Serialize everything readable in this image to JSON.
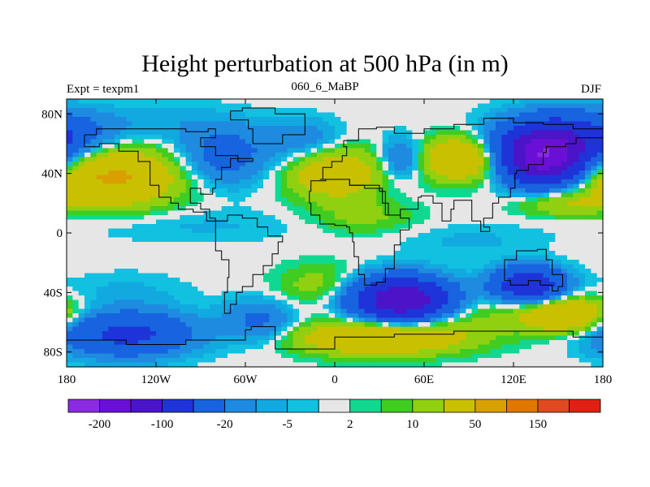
{
  "chart_data": {
    "type": "heatmap",
    "title": "Height perturbation at 500 hPa (in m)",
    "subtitle_left": "Expt = texpm1",
    "subtitle_center": "060_6_MaBP",
    "subtitle_right": "DJF",
    "x_axis": {
      "range": [
        -180,
        180
      ],
      "ticks": [
        -180,
        -120,
        -60,
        0,
        60,
        120,
        180
      ],
      "tick_labels": [
        "180",
        "120W",
        "60W",
        "0",
        "60E",
        "120E",
        "180"
      ]
    },
    "y_axis": {
      "range": [
        -90,
        90
      ],
      "ticks": [
        80,
        40,
        0,
        -40,
        -80
      ],
      "tick_labels": [
        "80N",
        "40N",
        "0",
        "40S",
        "80S"
      ]
    },
    "colorbar": {
      "colors": [
        "#8a2be2",
        "#6a0fd6",
        "#4b14c8",
        "#1e34d8",
        "#1763e0",
        "#1e8be0",
        "#12a8e0",
        "#12c0e0",
        "#e6e6e6",
        "#10d890",
        "#40cc20",
        "#90d010",
        "#c8c000",
        "#d8a000",
        "#e07800",
        "#e04a20",
        "#e02010"
      ],
      "labels": [
        "-200",
        "-100",
        "-20",
        "-5",
        "2",
        "10",
        "50",
        "150"
      ]
    },
    "field_blobs": [
      {
        "lon": -150,
        "lat": 38,
        "amp": 55,
        "sx": 32,
        "sy": 14
      },
      {
        "lon": -75,
        "lat": 52,
        "amp": -30,
        "sx": 22,
        "sy": 14
      },
      {
        "lon": -130,
        "lat": 73,
        "amp": -8,
        "sx": 40,
        "sy": 10
      },
      {
        "lon": -20,
        "lat": 62,
        "amp": -18,
        "sx": 18,
        "sy": 10
      },
      {
        "lon": 0,
        "lat": 40,
        "amp": 40,
        "sx": 22,
        "sy": 12
      },
      {
        "lon": 45,
        "lat": 50,
        "amp": -25,
        "sx": 10,
        "sy": 10
      },
      {
        "lon": 85,
        "lat": 50,
        "amp": 50,
        "sx": 18,
        "sy": 10
      },
      {
        "lon": 140,
        "lat": 50,
        "amp": -160,
        "sx": 18,
        "sy": 12
      },
      {
        "lon": 155,
        "lat": 62,
        "amp": -80,
        "sx": 30,
        "sy": 12
      },
      {
        "lon": 150,
        "lat": 20,
        "amp": 20,
        "sx": 20,
        "sy": 6
      },
      {
        "lon": -100,
        "lat": 5,
        "amp": -6,
        "sx": 60,
        "sy": 8
      },
      {
        "lon": 90,
        "lat": -5,
        "amp": -6,
        "sx": 35,
        "sy": 8
      },
      {
        "lon": 20,
        "lat": 10,
        "amp": 12,
        "sx": 25,
        "sy": 8
      },
      {
        "lon": -140,
        "lat": -40,
        "amp": -6,
        "sx": 30,
        "sy": 10
      },
      {
        "lon": -10,
        "lat": -35,
        "amp": 15,
        "sx": 20,
        "sy": 10
      },
      {
        "lon": 45,
        "lat": -45,
        "amp": -150,
        "sx": 22,
        "sy": 10
      },
      {
        "lon": 130,
        "lat": -35,
        "amp": -90,
        "sx": 16,
        "sy": 8
      },
      {
        "lon": 155,
        "lat": -55,
        "amp": 50,
        "sx": 20,
        "sy": 8
      },
      {
        "lon": -140,
        "lat": -68,
        "amp": -60,
        "sx": 30,
        "sy": 10
      },
      {
        "lon": -50,
        "lat": -60,
        "amp": -25,
        "sx": 18,
        "sy": 10
      },
      {
        "lon": 30,
        "lat": -70,
        "amp": 50,
        "sx": 40,
        "sy": 8
      },
      {
        "lon": 80,
        "lat": -55,
        "amp": 12,
        "sx": 40,
        "sy": 10
      }
    ]
  }
}
